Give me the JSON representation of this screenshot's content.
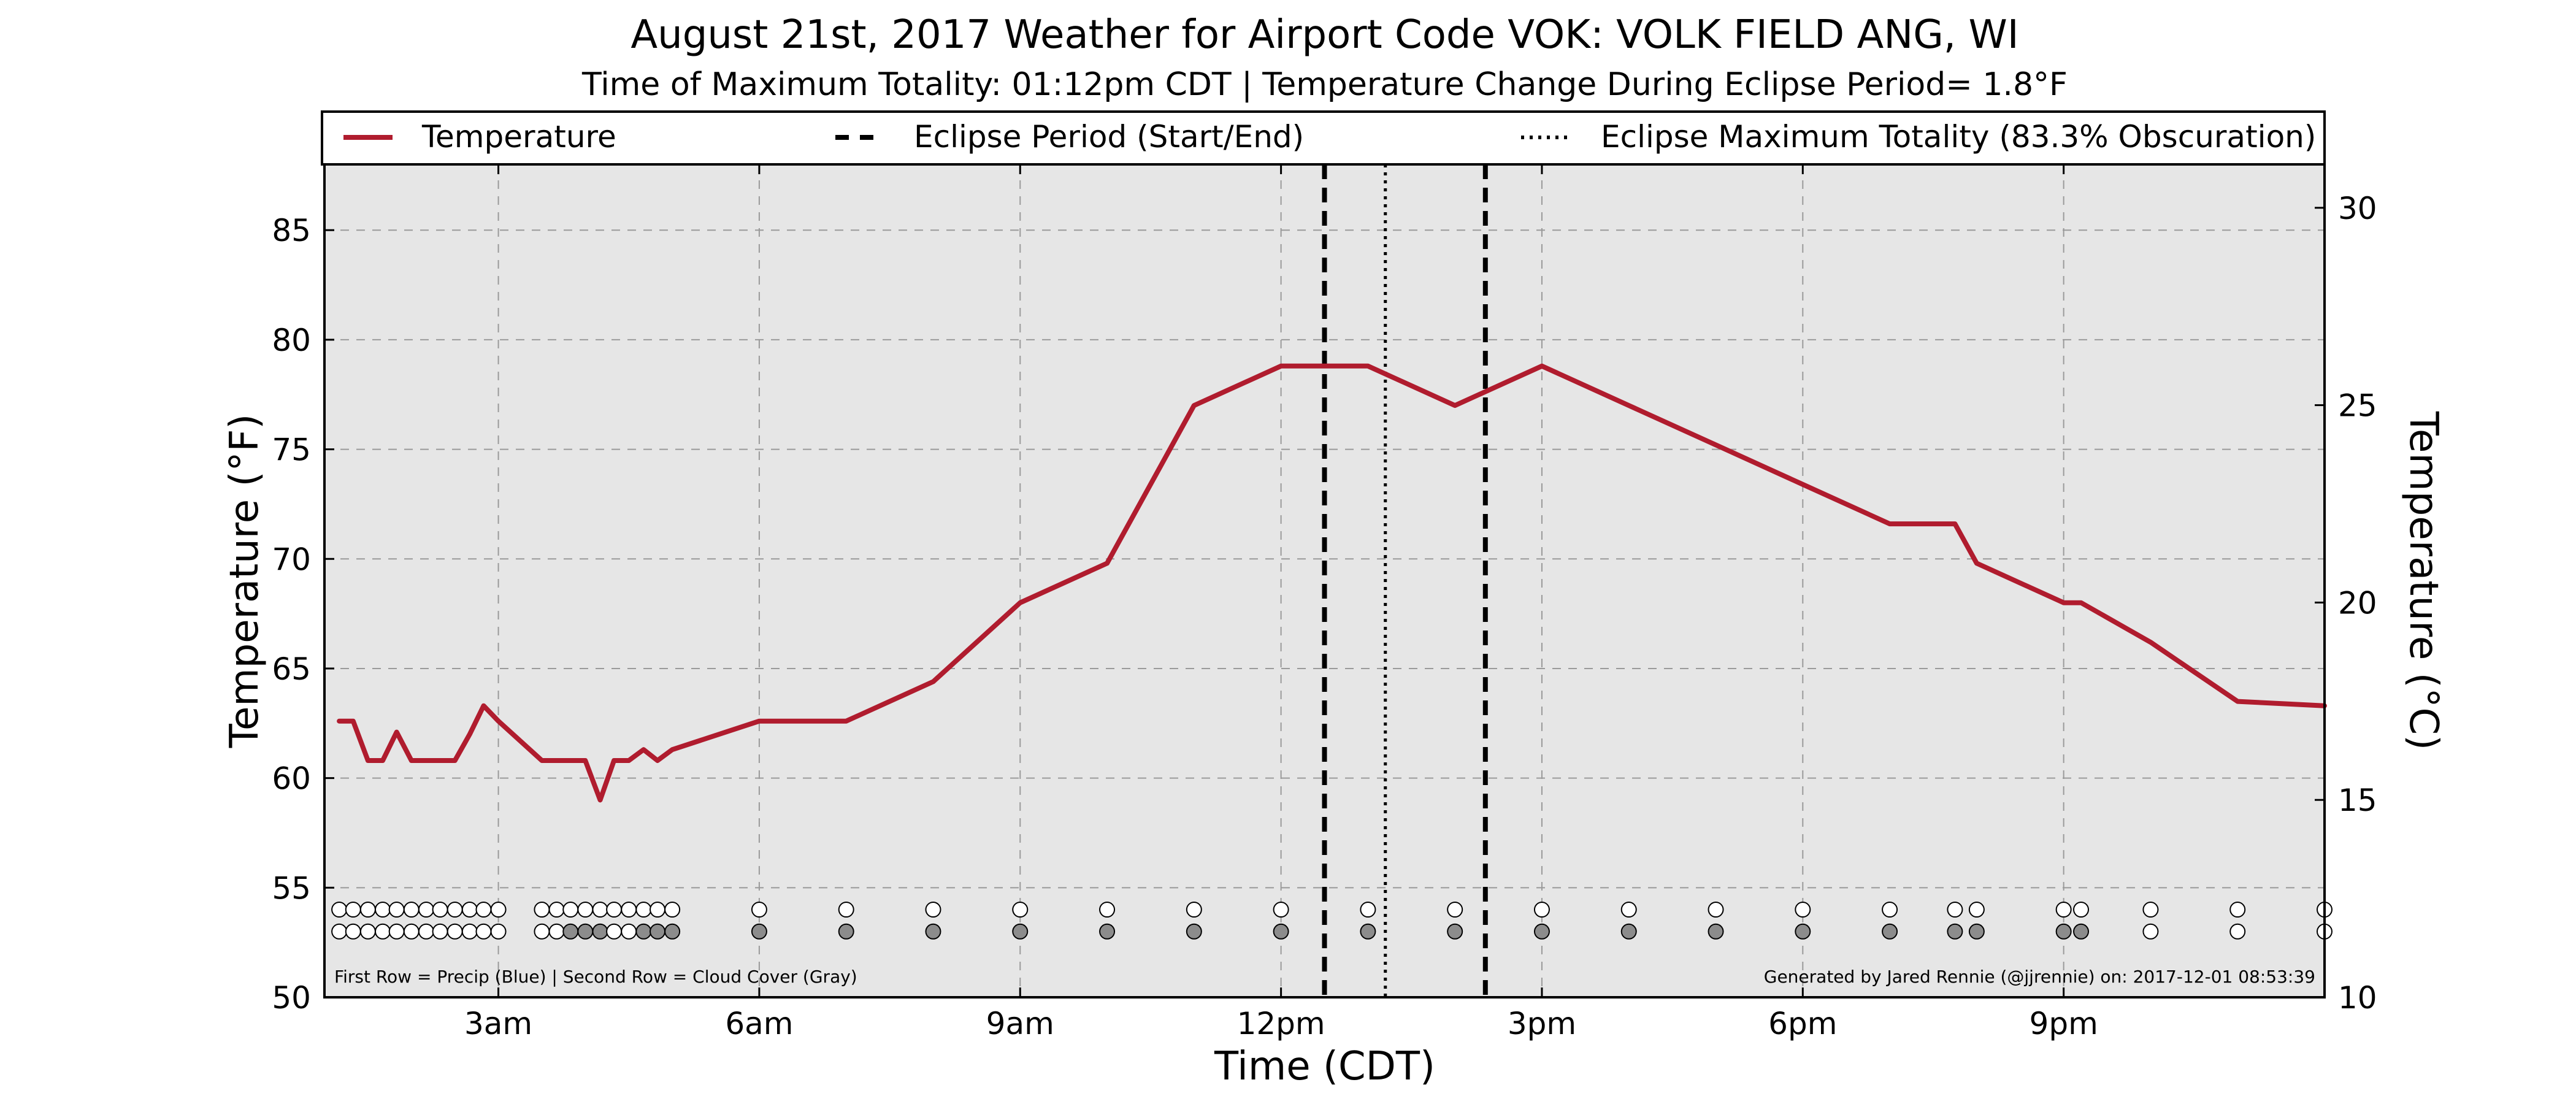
{
  "chart_data": {
    "type": "line",
    "title": "August 21st, 2017 Weather for Airport Code VOK: VOLK FIELD ANG, WI",
    "subtitle": "Time of Maximum Totality: 01:12pm CDT | Temperature Change During Eclipse Period= 1.8°F",
    "xlabel": "Time (CDT)",
    "ylabel": "Temperature (°F)",
    "ylabel_right": "Temperature (°C)",
    "xlim": [
      1.0,
      24.0
    ],
    "ylim": [
      50,
      88
    ],
    "ylim_right": [
      10,
      31.1
    ],
    "x_ticks": [
      {
        "x": 3,
        "label": "3am"
      },
      {
        "x": 6,
        "label": "6am"
      },
      {
        "x": 9,
        "label": "9am"
      },
      {
        "x": 12,
        "label": "12pm"
      },
      {
        "x": 15,
        "label": "3pm"
      },
      {
        "x": 18,
        "label": "6pm"
      },
      {
        "x": 21,
        "label": "9pm"
      }
    ],
    "y_ticks": [
      50,
      55,
      60,
      65,
      70,
      75,
      80,
      85
    ],
    "y_ticks_right": [
      10,
      15,
      20,
      25,
      30
    ],
    "grid": true,
    "legend": {
      "placement": "top",
      "entries": [
        {
          "label": "Temperature",
          "style": "solid",
          "color": "#b01c2e"
        },
        {
          "label": "Eclipse Period (Start/End)",
          "style": "dashed",
          "color": "#000000"
        },
        {
          "label": "Eclipse Maximum Totality (83.3% Obscuration)",
          "style": "dotted",
          "color": "#000000"
        }
      ]
    },
    "series": [
      {
        "name": "Temperature",
        "color": "#b01c2e",
        "x": [
          1.17,
          1.33,
          1.5,
          1.67,
          1.83,
          2.0,
          2.17,
          2.33,
          2.5,
          2.67,
          2.83,
          3.0,
          3.5,
          3.67,
          3.83,
          4.0,
          4.17,
          4.33,
          4.5,
          4.67,
          4.83,
          5.0,
          6.0,
          7.0,
          8.0,
          9.0,
          10.0,
          11.0,
          12.0,
          13.0,
          14.0,
          15.0,
          16.0,
          17.0,
          18.0,
          19.0,
          19.75,
          20.0,
          21.0,
          21.2,
          22.0,
          23.0,
          24.0
        ],
        "y": [
          62.6,
          62.6,
          60.8,
          60.8,
          62.1,
          60.8,
          60.8,
          60.8,
          60.8,
          62.0,
          63.3,
          62.6,
          60.8,
          60.8,
          60.8,
          60.8,
          59.0,
          60.8,
          60.8,
          61.3,
          60.8,
          61.3,
          62.6,
          62.6,
          64.4,
          68.0,
          69.8,
          77.0,
          78.8,
          78.8,
          77.0,
          78.8,
          77.0,
          75.2,
          73.4,
          71.6,
          71.6,
          69.8,
          68.0,
          68.0,
          66.2,
          63.5,
          63.3
        ]
      }
    ],
    "eclipse_start": 12.5,
    "eclipse_end": 14.35,
    "max_totality": 13.2,
    "observation_rows": {
      "note": "First Row = Precip (Blue) | Second Row = Cloud Cover (Gray)",
      "row1_y": 54,
      "row2_y": 53,
      "x": [
        1.17,
        1.33,
        1.5,
        1.67,
        1.83,
        2.0,
        2.17,
        2.33,
        2.5,
        2.67,
        2.83,
        3.0,
        3.5,
        3.67,
        3.83,
        4.0,
        4.17,
        4.33,
        4.5,
        4.67,
        4.83,
        5.0,
        6.0,
        7.0,
        8.0,
        9.0,
        10.0,
        11.0,
        12.0,
        13.0,
        14.0,
        15.0,
        16.0,
        17.0,
        18.0,
        19.0,
        19.75,
        20.0,
        21.0,
        21.2,
        22.0,
        23.0,
        24.0
      ],
      "row2_filled_x": [
        3.83,
        4.0,
        4.17,
        4.67,
        4.83,
        5.0,
        6.0,
        7.0,
        8.0,
        9.0,
        10.0,
        11.0,
        12.0,
        13.0,
        14.0,
        15.0,
        16.0,
        17.0,
        18.0,
        19.0,
        19.75,
        20.0,
        21.0,
        21.2
      ]
    },
    "footer_left": "First Row = Precip (Blue) | Second Row = Cloud Cover (Gray)",
    "footer_right": "Generated by Jared Rennie (@jjrennie) on: 2017-12-01 08:53:39"
  }
}
